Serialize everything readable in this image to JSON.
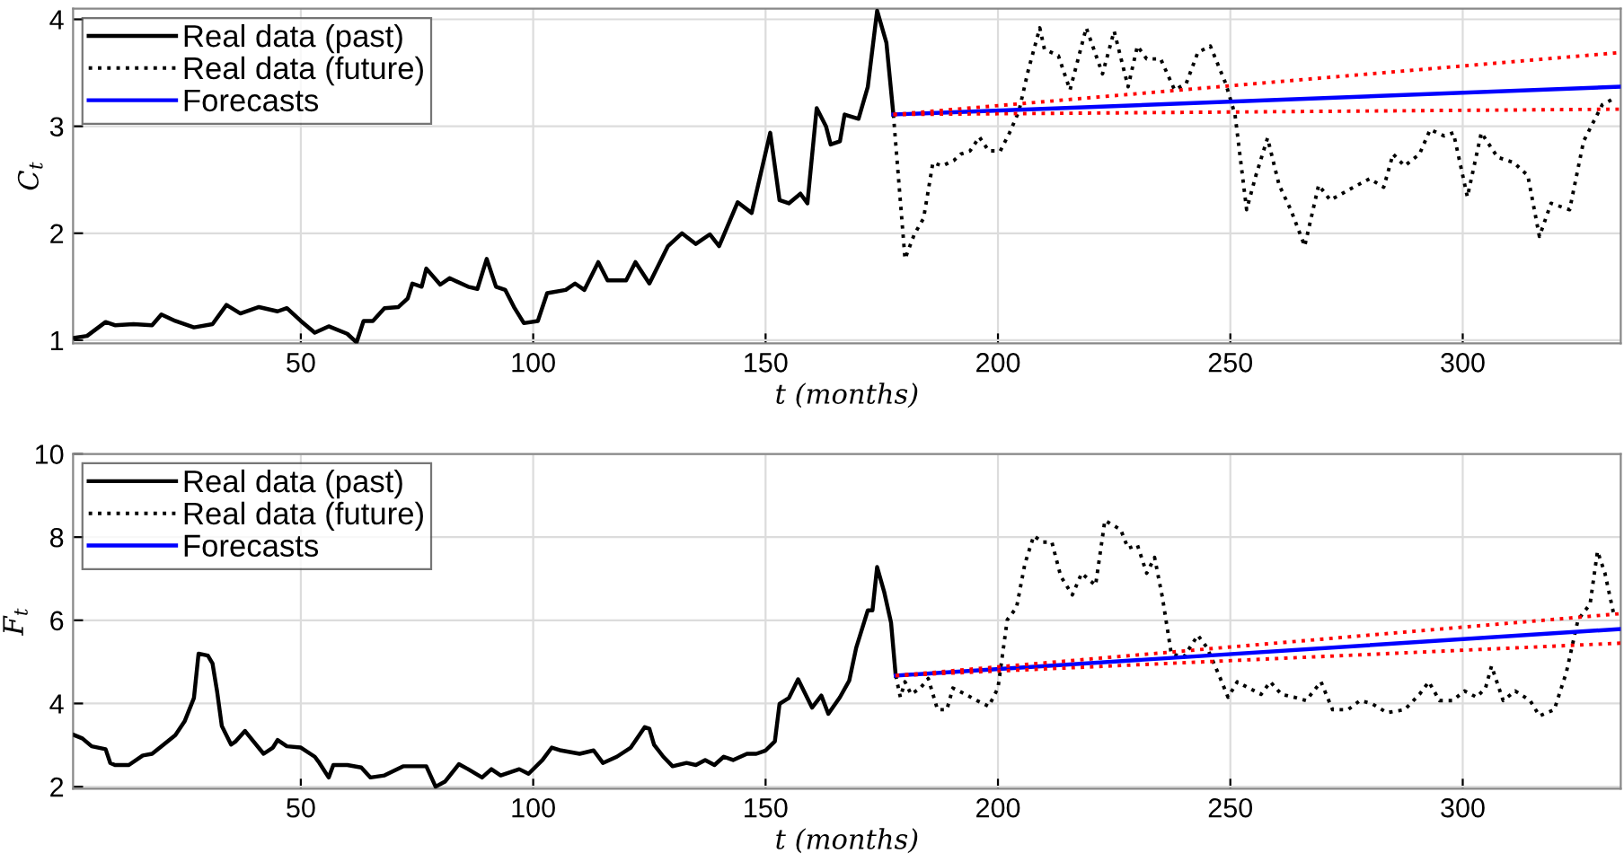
{
  "chart_data": [
    {
      "type": "line",
      "xlabel": "t (months)",
      "ylabel": "C$_{t}$",
      "xlim": [
        1,
        334
      ],
      "xticks": [
        50,
        100,
        150,
        200,
        250,
        300
      ],
      "ylim": [
        0.97,
        4.1
      ],
      "yticks": [
        1,
        2,
        3,
        4
      ],
      "grid": true,
      "legend": "top left",
      "series": [
        {
          "name": "Real data (past)",
          "color": "#000000",
          "line_style": "solid",
          "x": [
            1,
            4,
            8,
            10,
            14,
            18,
            20,
            23,
            27,
            31,
            34,
            37,
            41,
            45,
            47,
            50,
            53,
            56,
            60,
            62,
            63.5,
            65.5,
            68,
            71,
            73,
            74,
            76,
            77,
            80,
            82,
            86,
            88,
            90,
            92,
            94,
            96,
            98,
            101,
            103,
            107,
            109,
            111,
            114,
            116,
            120,
            122,
            125,
            129,
            132,
            135,
            138,
            140,
            144,
            147,
            151,
            153,
            155,
            157.5,
            159,
            161,
            163,
            164,
            166,
            167,
            170,
            172,
            174,
            176,
            177.5
          ],
          "values": [
            1.02,
            1.04,
            1.17,
            1.14,
            1.15,
            1.14,
            1.24,
            1.18,
            1.12,
            1.15,
            1.33,
            1.25,
            1.31,
            1.27,
            1.3,
            1.18,
            1.07,
            1.13,
            1.06,
            0.98,
            1.18,
            1.18,
            1.3,
            1.31,
            1.39,
            1.53,
            1.5,
            1.67,
            1.52,
            1.58,
            1.5,
            1.48,
            1.76,
            1.5,
            1.47,
            1.3,
            1.16,
            1.18,
            1.44,
            1.47,
            1.53,
            1.47,
            1.73,
            1.56,
            1.56,
            1.73,
            1.53,
            1.88,
            2.0,
            1.9,
            1.99,
            1.88,
            2.29,
            2.19,
            2.94,
            2.31,
            2.28,
            2.37,
            2.28,
            3.17,
            3.0,
            2.83,
            2.86,
            3.11,
            3.07,
            3.37,
            4.08,
            3.78,
            3.11
          ]
        },
        {
          "name": "Real data (future)",
          "color": "#000000",
          "line_style": "dotted",
          "x": [
            177.5,
            180,
            182,
            184,
            186,
            188,
            190.5,
            192,
            194,
            196,
            198,
            200.5,
            202.5,
            204.5,
            206.5,
            209,
            210,
            213,
            215.5,
            219,
            222.5,
            225,
            228,
            230,
            232,
            235,
            238,
            240.5,
            243,
            245.7,
            249,
            251,
            253.5,
            255.5,
            258,
            260.5,
            263,
            266,
            269,
            271.5,
            274,
            276.5,
            280,
            283,
            285,
            287.5,
            290.7,
            293,
            296,
            298,
            301,
            304,
            307.5,
            311,
            314,
            316.5,
            319,
            323,
            326,
            330,
            332.5
          ],
          "values": [
            3.11,
            1.76,
            1.99,
            2.14,
            2.66,
            2.63,
            2.68,
            2.74,
            2.77,
            2.9,
            2.77,
            2.77,
            2.94,
            3.14,
            3.52,
            3.92,
            3.72,
            3.66,
            3.34,
            3.92,
            3.49,
            3.89,
            3.37,
            3.75,
            3.63,
            3.63,
            3.34,
            3.4,
            3.69,
            3.75,
            3.4,
            3.11,
            2.22,
            2.54,
            2.89,
            2.45,
            2.22,
            1.88,
            2.45,
            2.31,
            2.37,
            2.43,
            2.51,
            2.43,
            2.74,
            2.63,
            2.74,
            2.97,
            2.91,
            2.94,
            2.34,
            2.94,
            2.71,
            2.66,
            2.54,
            1.97,
            2.28,
            2.22,
            2.86,
            3.2,
            3.26
          ]
        },
        {
          "name": "Forecasts",
          "color": "#0000ff",
          "line_style": "solid",
          "x": [
            177.5,
            334
          ],
          "values": [
            3.11,
            3.37
          ]
        },
        {
          "color": "#ff0000",
          "line_style": "dotted",
          "x": [
            177.5,
            334
          ],
          "values": [
            3.11,
            3.69
          ]
        },
        {
          "color": "#ff0000",
          "line_style": "dotted",
          "x": [
            177.5,
            334
          ],
          "values": [
            3.11,
            3.16
          ]
        }
      ]
    },
    {
      "type": "line",
      "xlabel": "t (months)",
      "ylabel": "F$_{t}$",
      "xlim": [
        1,
        334
      ],
      "xticks": [
        50,
        100,
        150,
        200,
        250,
        300
      ],
      "ylim": [
        1.95,
        10
      ],
      "yticks": [
        2,
        4,
        6,
        8,
        10
      ],
      "grid": true,
      "legend": "top left",
      "series": [
        {
          "name": "Real data (past)",
          "color": "#000000",
          "line_style": "solid",
          "x": [
            1,
            3,
            5,
            8,
            9,
            10,
            13,
            16,
            18,
            20,
            23,
            25,
            27,
            28,
            30,
            31,
            32,
            33,
            35,
            36,
            38,
            40,
            42,
            44,
            45,
            47,
            50,
            53,
            54,
            56,
            57,
            60,
            63,
            65,
            68,
            72,
            75,
            77,
            79,
            81,
            84,
            86,
            89,
            91,
            93,
            97,
            99,
            102,
            104,
            106,
            110,
            113,
            115,
            118,
            121,
            124,
            125,
            126,
            128,
            130,
            133,
            135,
            137,
            139,
            141,
            143,
            146,
            148,
            150,
            152,
            153,
            155,
            157,
            160,
            162,
            163.5,
            166,
            168,
            169.5,
            172,
            173,
            174,
            175.5,
            177,
            178
          ],
          "values": [
            3.25,
            3.16,
            2.97,
            2.9,
            2.57,
            2.52,
            2.52,
            2.75,
            2.79,
            2.97,
            3.24,
            3.57,
            4.13,
            5.2,
            5.15,
            4.96,
            4.28,
            3.46,
            3.01,
            3.09,
            3.34,
            3.06,
            2.79,
            2.94,
            3.12,
            2.97,
            2.94,
            2.72,
            2.57,
            2.22,
            2.52,
            2.52,
            2.46,
            2.22,
            2.27,
            2.49,
            2.49,
            2.49,
            2.0,
            2.12,
            2.54,
            2.42,
            2.22,
            2.42,
            2.27,
            2.42,
            2.31,
            2.64,
            2.94,
            2.87,
            2.79,
            2.87,
            2.57,
            2.72,
            2.94,
            3.43,
            3.39,
            3.01,
            2.72,
            2.49,
            2.57,
            2.52,
            2.64,
            2.52,
            2.72,
            2.64,
            2.79,
            2.79,
            2.87,
            3.09,
            3.99,
            4.13,
            4.58,
            3.9,
            4.19,
            3.75,
            4.15,
            4.55,
            5.34,
            6.24,
            6.24,
            7.28,
            6.69,
            5.94,
            4.67
          ]
        },
        {
          "name": "Real data (future)",
          "color": "#000000",
          "line_style": "dotted",
          "x": [
            178,
            179,
            180,
            181.3,
            183.3,
            185,
            187,
            189,
            190.3,
            193,
            195.5,
            198,
            200,
            202,
            204,
            205.8,
            207.7,
            209.7,
            211.6,
            213.5,
            216,
            218,
            221,
            223,
            226.4,
            228,
            230,
            232,
            233.7,
            235.4,
            237.3,
            240,
            243,
            245,
            247.6,
            249.5,
            251.5,
            254,
            256.6,
            258.6,
            261,
            263.7,
            266.3,
            269.5,
            272,
            275.3,
            277.9,
            280.4,
            283.7,
            287.5,
            290.7,
            292.7,
            295,
            297.8,
            300.4,
            303,
            304.9,
            306.2,
            308.7,
            311.3,
            314.5,
            316.5,
            319.7,
            322.3,
            324.8,
            327.4,
            329,
            330.6,
            332.6
          ],
          "values": [
            4.67,
            4.15,
            4.52,
            4.22,
            4.37,
            4.6,
            3.85,
            3.85,
            4.37,
            4.22,
            4.07,
            3.93,
            4.37,
            6.01,
            6.31,
            7.36,
            8.03,
            7.88,
            7.88,
            7.06,
            6.61,
            7.13,
            6.84,
            8.4,
            8.18,
            7.73,
            7.81,
            7.13,
            7.51,
            6.54,
            5.19,
            5.12,
            5.64,
            5.34,
            4.67,
            4.15,
            4.52,
            4.37,
            4.22,
            4.52,
            4.22,
            4.15,
            4.07,
            4.52,
            3.85,
            3.85,
            4.07,
            4.0,
            3.78,
            3.85,
            4.22,
            4.52,
            4.07,
            4.07,
            4.3,
            4.15,
            4.37,
            4.9,
            4.07,
            4.3,
            4.07,
            3.7,
            3.85,
            4.75,
            6.01,
            6.39,
            7.66,
            7.13,
            6.09
          ]
        },
        {
          "name": "Forecasts",
          "color": "#0000ff",
          "line_style": "solid",
          "x": [
            178,
            334
          ],
          "values": [
            4.67,
            5.79
          ]
        },
        {
          "color": "#ff0000",
          "line_style": "dotted",
          "x": [
            178,
            334
          ],
          "values": [
            4.67,
            6.16
          ]
        },
        {
          "color": "#ff0000",
          "line_style": "dotted",
          "x": [
            178,
            334
          ],
          "values": [
            4.67,
            5.45
          ]
        }
      ]
    }
  ]
}
